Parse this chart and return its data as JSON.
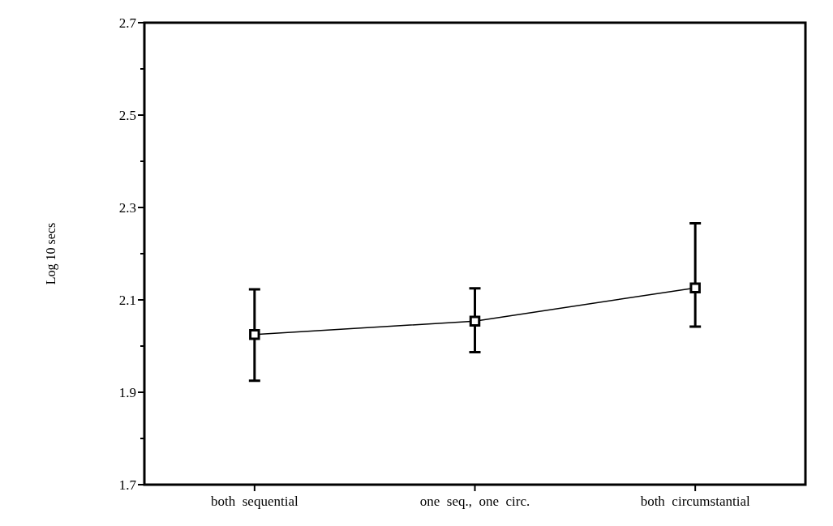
{
  "chart_data": {
    "type": "line",
    "ylabel": "Log 10 secs",
    "categories": [
      "both  sequential",
      "one  seq.,  one  circ.",
      "both  circumstantial"
    ],
    "series": [
      {
        "color": "#000000",
        "values": [
          2.025,
          2.054,
          2.126
        ],
        "errors": [
          [
            1.925,
            2.123
          ],
          [
            1.987,
            2.125
          ],
          [
            2.042,
            2.266
          ]
        ]
      }
    ],
    "ylim": [
      1.7,
      2.7
    ],
    "yticks": [
      1.7,
      {
        "value": 1.8,
        "label": null
      },
      1.9,
      {
        "value": 2.0,
        "label": null
      },
      2.1,
      {
        "value": 2.2,
        "label": null
      },
      2.3,
      {
        "value": 2.4,
        "label": null
      },
      2.5,
      {
        "value": 2.6,
        "label": null
      },
      2.7
    ],
    "grid": false,
    "marker": "square",
    "line_style": "solid"
  }
}
